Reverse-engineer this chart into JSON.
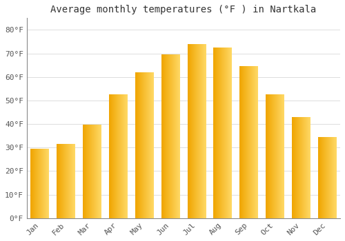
{
  "title": "Average monthly temperatures (°F ) in Nartkala",
  "months": [
    "Jan",
    "Feb",
    "Mar",
    "Apr",
    "May",
    "Jun",
    "Jul",
    "Aug",
    "Sep",
    "Oct",
    "Nov",
    "Dec"
  ],
  "values": [
    29.5,
    31.5,
    39.5,
    52.5,
    62.0,
    69.5,
    74.0,
    72.5,
    64.5,
    52.5,
    43.0,
    34.5
  ],
  "bar_color_left": "#F0A500",
  "bar_color_right": "#FFD966",
  "background_color": "#FFFFFF",
  "grid_color": "#DDDDDD",
  "ylim": [
    0,
    85
  ],
  "yticks": [
    0,
    10,
    20,
    30,
    40,
    50,
    60,
    70,
    80
  ],
  "ytick_labels": [
    "0°F",
    "10°F",
    "20°F",
    "30°F",
    "40°F",
    "50°F",
    "60°F",
    "70°F",
    "80°F"
  ],
  "title_fontsize": 10,
  "tick_fontsize": 8,
  "font_family": "monospace"
}
